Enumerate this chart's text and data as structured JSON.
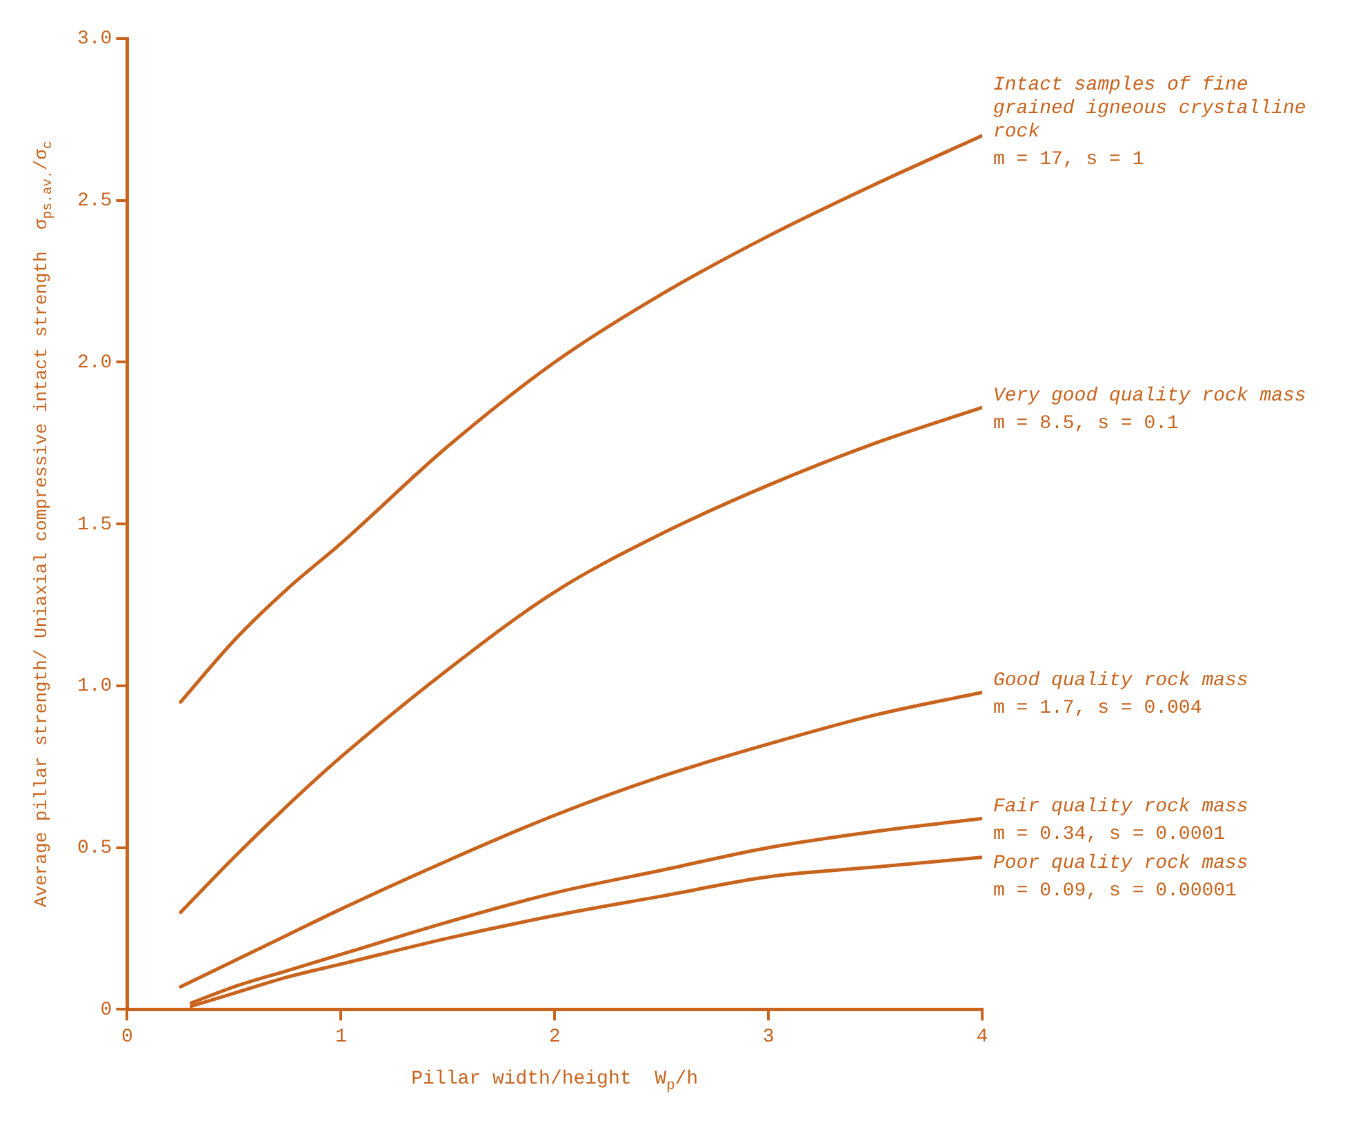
{
  "chart_data": {
    "type": "line",
    "xlabel": "Pillar width/height  W$_{p}$/h",
    "ylabel": "Average pillar strength/ Uniaxial compressive intact strength  σ$_{ps.av.}$/σ$_{c}$",
    "xlim": [
      0,
      4
    ],
    "xticks": [
      0,
      1,
      2,
      3,
      4
    ],
    "ylim": [
      0,
      3
    ],
    "yticks": [
      0,
      0.5,
      {
        "value": 1,
        "label": "1.0"
      },
      1.5,
      {
        "value": 2,
        "label": "2.0"
      },
      2.5,
      {
        "value": 3,
        "label": "3.0"
      }
    ],
    "grid": false,
    "legend": false,
    "marker": "none",
    "line_style": "solid",
    "series": [
      {
        "name": "Intact samples of fine grained igneous crystalline rock",
        "color": "#c8641e",
        "x": [
          0.25,
          0.5,
          0.75,
          1,
          1.5,
          2,
          2.5,
          3,
          3.5,
          4
        ],
        "values": [
          0.95,
          1.14,
          1.3,
          1.44,
          1.74,
          2.0,
          2.21,
          2.39,
          2.55,
          2.7
        ]
      },
      {
        "name": "Very good quality rock mass",
        "color": "#c8641e",
        "x": [
          0.25,
          0.5,
          0.75,
          1,
          1.5,
          2,
          2.5,
          3,
          3.5,
          4
        ],
        "values": [
          0.3,
          0.47,
          0.63,
          0.78,
          1.05,
          1.29,
          1.47,
          1.62,
          1.75,
          1.86
        ]
      },
      {
        "name": "Good quality rock mass",
        "color": "#c8641e",
        "x": [
          0.25,
          0.5,
          0.75,
          1,
          1.5,
          2,
          2.5,
          3,
          3.5,
          4
        ],
        "values": [
          0.07,
          0.15,
          0.23,
          0.31,
          0.46,
          0.6,
          0.72,
          0.82,
          0.91,
          0.98
        ]
      },
      {
        "name": "Fair quality rock mass",
        "color": "#c8641e",
        "x": [
          0.3,
          0.5,
          0.75,
          1,
          1.5,
          2,
          2.5,
          3,
          3.5,
          4
        ],
        "values": [
          0.02,
          0.07,
          0.12,
          0.17,
          0.27,
          0.36,
          0.43,
          0.5,
          0.55,
          0.59
        ]
      },
      {
        "name": "Poor quality rock mass",
        "color": "#c8641e",
        "x": [
          0.3,
          0.5,
          0.75,
          1,
          1.5,
          2,
          2.5,
          3,
          3.5,
          4
        ],
        "values": [
          0.01,
          0.05,
          0.1,
          0.14,
          0.22,
          0.29,
          0.35,
          0.41,
          0.44,
          0.47
        ]
      }
    ],
    "annotations": [
      "m = 17, s = 1",
      "m = 8.5, s = 0.1",
      "m = 1.7, s = 0.004",
      "m = 0.34, s = 0.0001",
      "m = 0.09, s = 0.00001"
    ]
  }
}
